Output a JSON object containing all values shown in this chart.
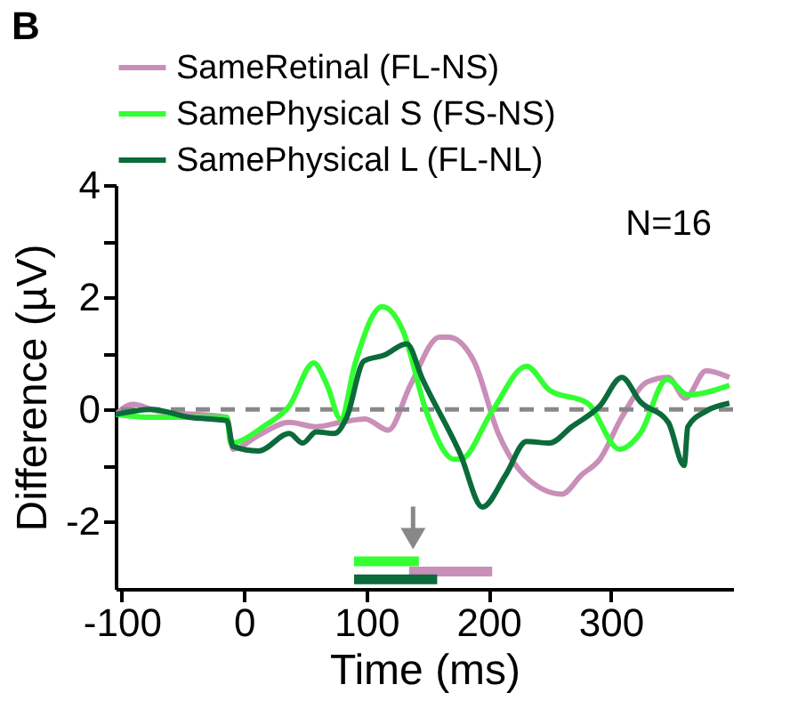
{
  "chart_data": {
    "type": "line",
    "title": "B",
    "xlabel": "Time (ms)",
    "ylabel": "Difference (µV)",
    "xlim": [
      -105,
      400
    ],
    "xticks": [
      -100,
      0,
      100,
      200,
      300
    ],
    "ylim": [
      -3.2,
      4
    ],
    "yticks": [
      {
        "value": -2,
        "label": "-2"
      },
      {
        "value": -1,
        "label": null
      },
      0,
      {
        "value": 1,
        "label": null
      },
      2,
      {
        "value": 3,
        "label": null
      },
      4
    ],
    "legend": "top",
    "grid": false,
    "marker": "none",
    "line_style": "solid",
    "annotations": [
      "N=16"
    ],
    "ref_lines": [
      {
        "axis": "y",
        "value": 0,
        "label": null,
        "color": "#888888",
        "line_style": "dashed"
      }
    ],
    "series": [
      {
        "name": "SameRetinal (FL-NS)",
        "color": "#c98fb8",
        "x": [
          -105,
          -91,
          -71,
          -14,
          -9,
          12,
          37,
          59,
          79,
          99,
          118,
          136,
          160,
          167,
          188,
          208,
          229,
          260,
          276,
          291,
          309,
          330,
          347,
          361,
          378,
          397
        ],
        "values": [
          -0.09,
          0.09,
          -0.03,
          -0.14,
          -0.71,
          -0.46,
          -0.23,
          -0.31,
          -0.23,
          -0.17,
          -0.37,
          0.43,
          1.29,
          1.29,
          0.86,
          -0.43,
          -1.17,
          -1.51,
          -1.17,
          -0.89,
          -0.14,
          0.49,
          0.57,
          0.2,
          0.69,
          0.57
        ]
      },
      {
        "name": "SamePhysical S (FS-NS)",
        "color": "#33ff33",
        "x": [
          -105,
          -76,
          -14,
          -11,
          17,
          37,
          57,
          68,
          79,
          91,
          113,
          130,
          149,
          172,
          177,
          203,
          231,
          250,
          281,
          307,
          324,
          346,
          363,
          397
        ],
        "values": [
          -0.09,
          -0.14,
          -0.14,
          -0.6,
          -0.29,
          0.06,
          0.83,
          0.43,
          -0.17,
          0.83,
          1.83,
          1.4,
          -0.03,
          -0.89,
          -0.89,
          -0.03,
          0.77,
          0.34,
          0.11,
          -0.71,
          -0.43,
          0.54,
          0.26,
          0.43
        ]
      },
      {
        "name": "SamePhysical L (FL-NL)",
        "color": "#0b6b3a",
        "x": [
          -105,
          -76,
          -45,
          -14,
          -9,
          12,
          37,
          48,
          59,
          74,
          84,
          98,
          115,
          133,
          146,
          177,
          195,
          214,
          231,
          250,
          268,
          291,
          309,
          324,
          347,
          360,
          363,
          378,
          397
        ],
        "values": [
          -0.09,
          0,
          -0.14,
          -0.2,
          -0.66,
          -0.74,
          -0.43,
          -0.6,
          -0.4,
          -0.43,
          -0.14,
          0.86,
          0.97,
          1.17,
          0.54,
          -0.8,
          -1.74,
          -1.17,
          -0.57,
          -0.6,
          -0.31,
          0.06,
          0.57,
          0.14,
          -0.23,
          -1.0,
          -0.31,
          -0.03,
          0.11
        ]
      },
      {
        "color": "#33ff33",
        "x": [
          90,
          143
        ],
        "values": [
          -2.71,
          -2.71
        ]
      },
      {
        "color": "#c98fb8",
        "x": [
          135,
          203
        ],
        "values": [
          -2.89,
          -2.89
        ]
      },
      {
        "color": "#0b6b3a",
        "x": [
          90,
          158
        ],
        "values": [
          -3.03,
          -3.03
        ]
      }
    ]
  }
}
